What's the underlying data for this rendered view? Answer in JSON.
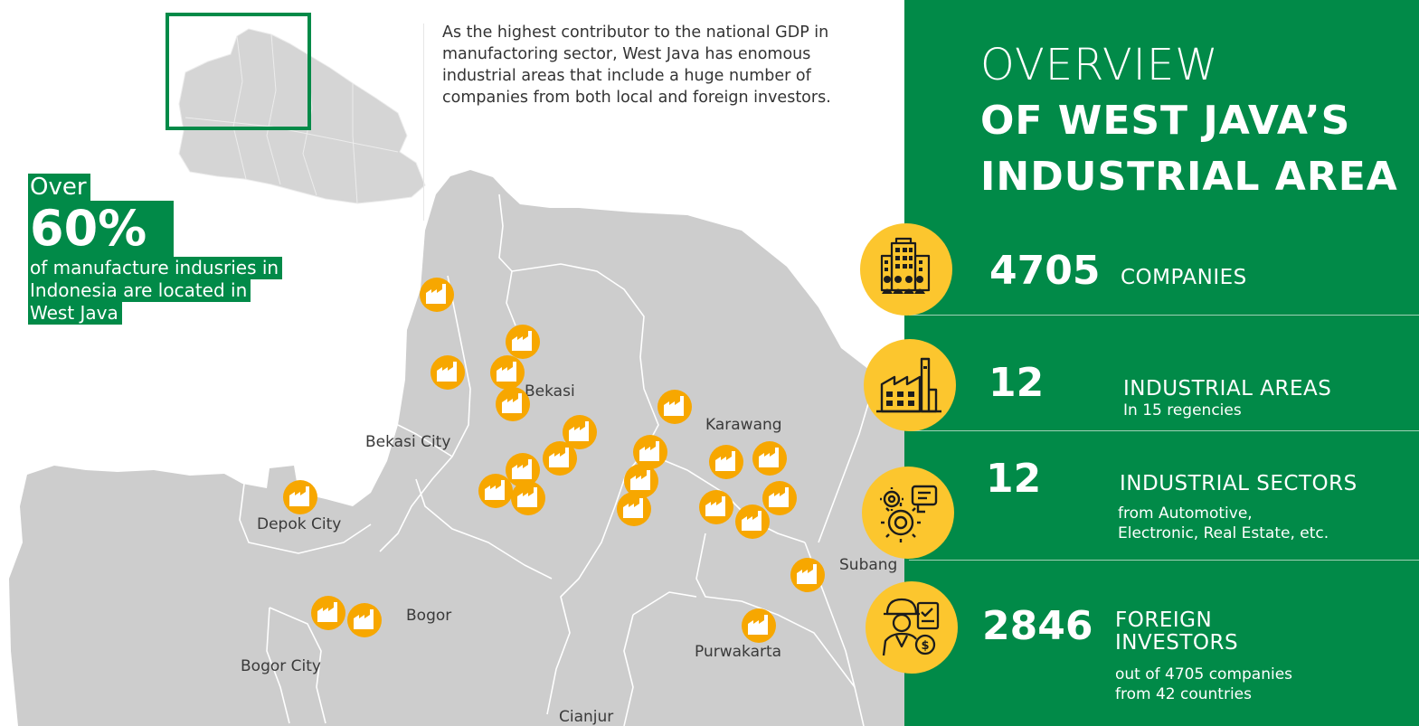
{
  "intro_text": "As the highest contributor to the national GDP in manufactoring sector, West Java has enomous industrial areas that include a huge number of companies from both local and foreign investors.",
  "callout": {
    "over": "Over",
    "percent": "60%",
    "line1": "of manufacture indusries in",
    "line2": "Indonesia are located in",
    "line3": "West Java"
  },
  "title": {
    "line1": "OVERVIEW",
    "line2": "OF WEST JAVA’S",
    "line3": "INDUSTRIAL AREA"
  },
  "stats": [
    {
      "value": "4705",
      "label": "COMPANIES",
      "sub1": "",
      "sub2": "",
      "icon": "office-building-icon"
    },
    {
      "value": "12",
      "label": "INDUSTRIAL AREAS",
      "sub1": "In 15 regencies",
      "sub2": "",
      "icon": "factory-icon"
    },
    {
      "value": "12",
      "label": "INDUSTRIAL SECTORS",
      "sub1": "from Automotive,",
      "sub2": "Electronic, Real Estate, etc.",
      "icon": "gears-icon"
    },
    {
      "value": "2846",
      "label": "FOREIGN",
      "label2": "INVESTORS",
      "sub1": "out of 4705 companies",
      "sub2": "from 42 countries",
      "icon": "investor-icon"
    }
  ],
  "regions": {
    "bekasi": "Bekasi",
    "bekasi_city": "Bekasi City",
    "karawang": "Karawang",
    "depok_city": "Depok City",
    "bogor": "Bogor",
    "bogor_city": "Bogor City",
    "subang": "Subang",
    "purwakarta": "Purwakarta",
    "cianjur": "Cianjur"
  },
  "colors": {
    "brand_green": "#018a48",
    "marker_orange": "#f7a700",
    "icon_yellow": "#fcc62e",
    "map_gray": "#cccccc"
  },
  "marker_icon": "factory-marker-icon",
  "inset_icon": "west-java-inset-map"
}
